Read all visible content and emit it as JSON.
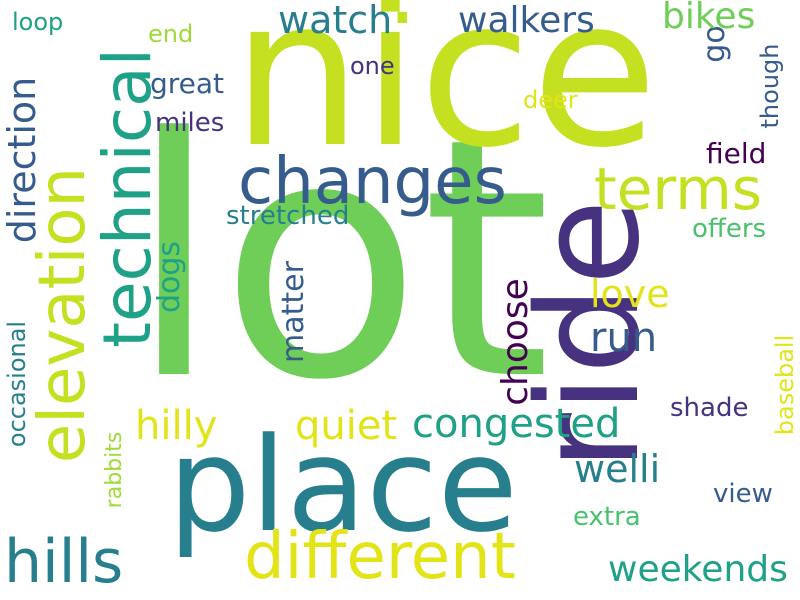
{
  "words": {
    "lot": "lot",
    "nice": "nice",
    "place": "place",
    "ride": "ride",
    "technical": "technical",
    "elevation": "elevation",
    "changes": "changes",
    "different": "different",
    "terms": "terms",
    "hills": "hills",
    "watch": "watch",
    "walkers": "walkers",
    "bikes": "bikes",
    "direction": "direction",
    "congested": "congested",
    "weekends": "weekends",
    "hilly": "hilly",
    "quiet": "quiet",
    "choose": "choose",
    "run": "run",
    "love": "love",
    "matter": "matter",
    "dogs": "dogs",
    "welli": "welli",
    "occasional": "occasional",
    "rabbits": "rabbits",
    "stretched": "stretched",
    "great": "great",
    "miles": "miles",
    "one": "one",
    "deer": "deer",
    "loop": "loop",
    "end": "end",
    "go": "go",
    "though": "though",
    "field": "field",
    "offers": "offers",
    "shade": "shade",
    "baseball": "baseball",
    "view": "view",
    "extra": "extra",
    "dot": "."
  },
  "colors": {
    "c0": "#440154",
    "c1": "#46327e",
    "c2": "#365c8d",
    "c3": "#277f8e",
    "c4": "#1fa187",
    "c5": "#4ac16d",
    "c6": "#6fce58",
    "c7": "#a0da39",
    "c8": "#c5e021",
    "c9": "#e3e418"
  }
}
